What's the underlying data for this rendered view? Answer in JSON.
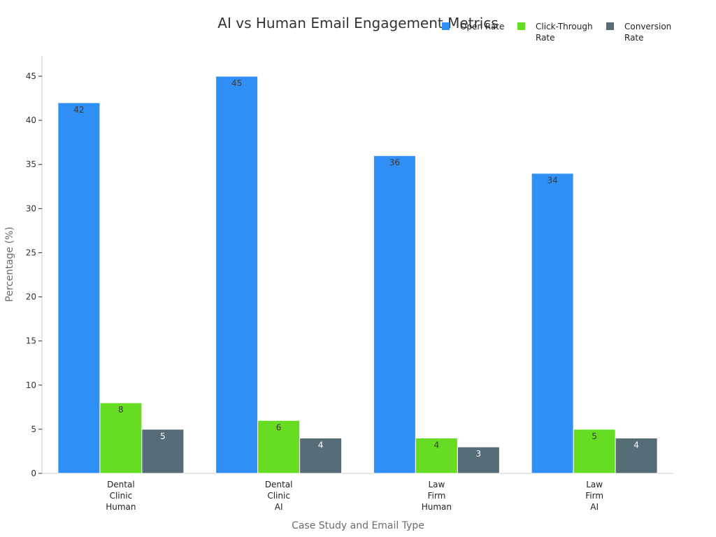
{
  "chart_data": {
    "type": "bar",
    "title": "AI vs Human Email Engagement Metrics",
    "xlabel": "Case Study and Email Type",
    "ylabel": "Percentage (%)",
    "categories": [
      [
        "Dental",
        "Clinic",
        "Human"
      ],
      [
        "Dental",
        "Clinic",
        "AI"
      ],
      [
        "Law",
        "Firm",
        "Human"
      ],
      [
        "Law",
        "Firm",
        "AI"
      ]
    ],
    "series": [
      {
        "name": "Open Rate",
        "legend_lines": [
          "Open Rate"
        ],
        "color": "#2f8ff5",
        "values": [
          42,
          45,
          36,
          34
        ]
      },
      {
        "name": "Click-Through Rate",
        "legend_lines": [
          "Click-Through",
          "Rate"
        ],
        "color": "#66dd22",
        "values": [
          8,
          6,
          4,
          5
        ]
      },
      {
        "name": "Conversion Rate",
        "legend_lines": [
          "Conversion",
          "Rate"
        ],
        "color": "#566d78",
        "values": [
          5,
          4,
          3,
          4
        ]
      }
    ],
    "ylim": [
      0,
      47.3
    ],
    "yticks": [
      0,
      5,
      10,
      15,
      20,
      25,
      30,
      35,
      40,
      45
    ],
    "grid": false,
    "legend_position": "top-right",
    "data_labels": true
  }
}
